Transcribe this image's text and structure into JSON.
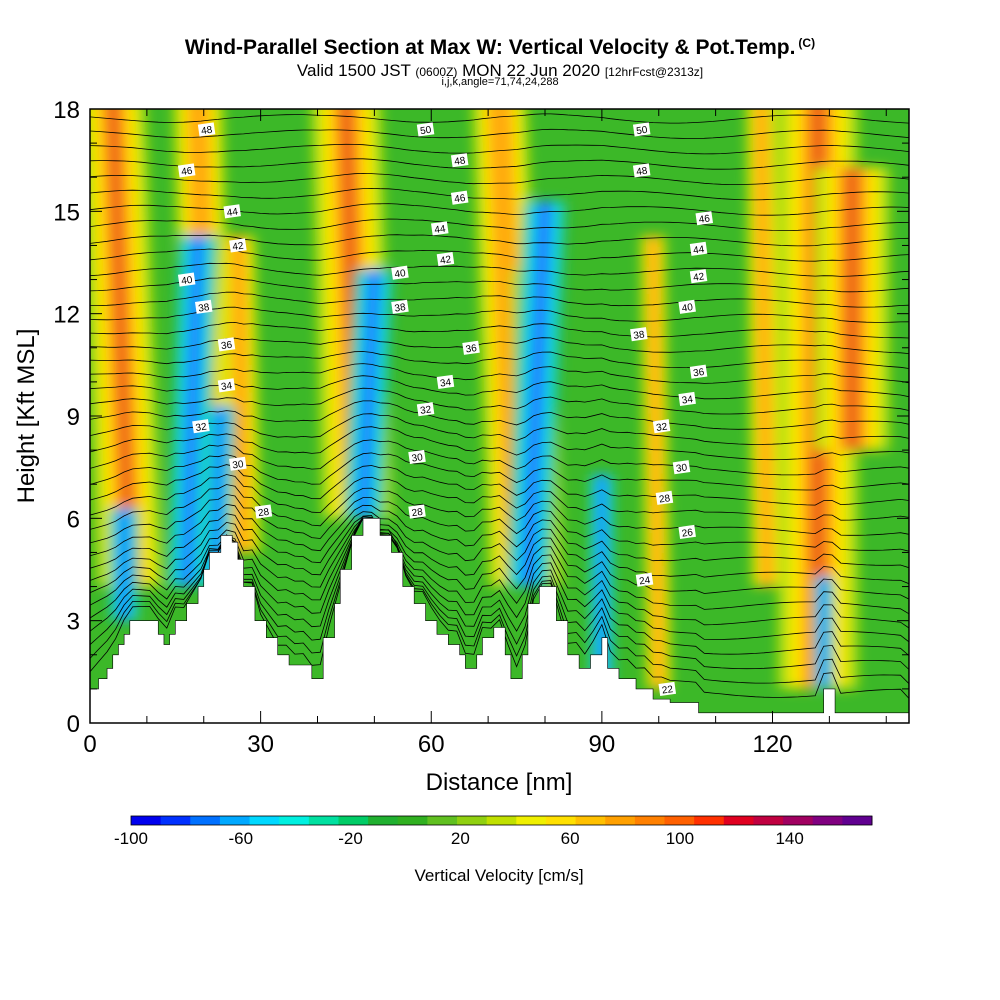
{
  "title": {
    "main": "Wind-Parallel Section at Max W: Vertical Velocity & Pot.Temp.",
    "copyright": "(C)",
    "valid_prefix": "Valid 1500 JST",
    "valid_z": "(0600Z)",
    "valid_date": "MON 22 Jun 2020",
    "forecast": "[12hrFcst@2313z]",
    "indices": "i,j,k,angle=71,74,24,288"
  },
  "chart_data": {
    "type": "heatmap",
    "xlabel": "Distance [nm]",
    "ylabel": "Height [Kft MSL]",
    "xlim": [
      0,
      144
    ],
    "ylim": [
      0,
      18
    ],
    "x_ticks": [
      0,
      30,
      60,
      90,
      120
    ],
    "y_ticks": [
      0,
      3,
      6,
      9,
      12,
      15,
      18
    ],
    "colorbar": {
      "label": "Vertical Velocity [cm/s]",
      "min": -100,
      "max": 170,
      "tick_labels": [
        -100,
        -60,
        -20,
        20,
        60,
        100,
        140
      ],
      "colors": [
        "#0000ee",
        "#0030ff",
        "#0070ff",
        "#00a8ff",
        "#00d8ff",
        "#00f0e0",
        "#00e0a0",
        "#00cc66",
        "#20b030",
        "#30b020",
        "#60c020",
        "#90d010",
        "#c0e000",
        "#f0f000",
        "#ffe000",
        "#ffc000",
        "#ffa000",
        "#ff8000",
        "#ff6000",
        "#ff3000",
        "#e00020",
        "#c00040",
        "#a00060",
        "#800080",
        "#600090"
      ]
    },
    "updrafts": [
      {
        "x": 7,
        "w": 130,
        "bottom": 4,
        "top": 18,
        "tilt": -3
      },
      {
        "x": 21,
        "w": 100,
        "bottom": 4,
        "top": 18,
        "tilt": -2
      },
      {
        "x": 27,
        "w": 70,
        "bottom": 5,
        "top": 14,
        "tilt": -1
      },
      {
        "x": 47,
        "w": 140,
        "bottom": 6,
        "top": 18,
        "tilt": -2
      },
      {
        "x": 50,
        "w": 50,
        "bottom": 6,
        "top": 12,
        "tilt": -1
      },
      {
        "x": 75,
        "w": 110,
        "bottom": 4,
        "top": 18,
        "tilt": -3
      },
      {
        "x": 79,
        "w": 90,
        "bottom": 4,
        "top": 13,
        "tilt": -1
      },
      {
        "x": 100,
        "w": 50,
        "bottom": 1,
        "top": 14,
        "tilt": -1
      },
      {
        "x": 119,
        "w": 60,
        "bottom": 4,
        "top": 18,
        "tilt": -1
      },
      {
        "x": 128,
        "w": 160,
        "bottom": 1,
        "top": 18,
        "tilt": 0
      },
      {
        "x": 134,
        "w": 150,
        "bottom": 8,
        "top": 16,
        "tilt": 0
      }
    ],
    "downdrafts": [
      {
        "x": 17,
        "w": 80,
        "bottom": 4,
        "top": 14,
        "tilt": 2
      },
      {
        "x": 22,
        "w": 60,
        "bottom": 4,
        "top": 9,
        "tilt": 1
      },
      {
        "x": 48,
        "w": 80,
        "bottom": 6,
        "top": 13,
        "tilt": 2
      },
      {
        "x": 77,
        "w": 90,
        "bottom": 4,
        "top": 15,
        "tilt": 3
      },
      {
        "x": 90,
        "w": 50,
        "bottom": 1,
        "top": 7,
        "tilt": 0
      },
      {
        "x": 6,
        "w": 60,
        "bottom": 3,
        "top": 6,
        "tilt": 0
      },
      {
        "x": 129,
        "w": 40,
        "bottom": 1,
        "top": 4,
        "tilt": 0
      }
    ],
    "terrain": [
      [
        0,
        1
      ],
      [
        1.5,
        1
      ],
      [
        1.5,
        1.3
      ],
      [
        3,
        1.3
      ],
      [
        3,
        1.6
      ],
      [
        4,
        1.6
      ],
      [
        4,
        2
      ],
      [
        5,
        2
      ],
      [
        5,
        2.3
      ],
      [
        6,
        2.3
      ],
      [
        6,
        2.6
      ],
      [
        7,
        2.6
      ],
      [
        7,
        3
      ],
      [
        12,
        3
      ],
      [
        12,
        2.6
      ],
      [
        13,
        2.6
      ],
      [
        13,
        2.3
      ],
      [
        14,
        2.3
      ],
      [
        14,
        2.6
      ],
      [
        15,
        2.6
      ],
      [
        15,
        3
      ],
      [
        17,
        3
      ],
      [
        17,
        3.5
      ],
      [
        19,
        3.5
      ],
      [
        19,
        4
      ],
      [
        20,
        4
      ],
      [
        20,
        4.5
      ],
      [
        21,
        4.5
      ],
      [
        21,
        5
      ],
      [
        23,
        5
      ],
      [
        23,
        5.5
      ],
      [
        25,
        5.5
      ],
      [
        25,
        5.3
      ],
      [
        26,
        5.3
      ],
      [
        26,
        4.8
      ],
      [
        27,
        4.8
      ],
      [
        27,
        4
      ],
      [
        29,
        4
      ],
      [
        29,
        3
      ],
      [
        31,
        3
      ],
      [
        31,
        2.5
      ],
      [
        33,
        2.5
      ],
      [
        33,
        2
      ],
      [
        35,
        2
      ],
      [
        35,
        1.7
      ],
      [
        39,
        1.7
      ],
      [
        39,
        1.3
      ],
      [
        41,
        1.3
      ],
      [
        41,
        2.5
      ],
      [
        43,
        2.5
      ],
      [
        43,
        3.5
      ],
      [
        44,
        3.5
      ],
      [
        44,
        4.5
      ],
      [
        46,
        4.5
      ],
      [
        46,
        5.5
      ],
      [
        48,
        5.5
      ],
      [
        48,
        6
      ],
      [
        51,
        6
      ],
      [
        51,
        5.5
      ],
      [
        53,
        5.5
      ],
      [
        53,
        5
      ],
      [
        55,
        5
      ],
      [
        55,
        4
      ],
      [
        57,
        4
      ],
      [
        57,
        3.5
      ],
      [
        59,
        3.5
      ],
      [
        59,
        3
      ],
      [
        61,
        3
      ],
      [
        61,
        2.6
      ],
      [
        63,
        2.6
      ],
      [
        63,
        2.3
      ],
      [
        65,
        2.3
      ],
      [
        65,
        2
      ],
      [
        66,
        2
      ],
      [
        66,
        1.6
      ],
      [
        68,
        1.6
      ],
      [
        68,
        2
      ],
      [
        69,
        2
      ],
      [
        69,
        2.5
      ],
      [
        71,
        2.5
      ],
      [
        71,
        2.8
      ],
      [
        73,
        2.8
      ],
      [
        73,
        2
      ],
      [
        74,
        2
      ],
      [
        74,
        1.3
      ],
      [
        76,
        1.3
      ],
      [
        76,
        2
      ],
      [
        77,
        2
      ],
      [
        77,
        3.5
      ],
      [
        79,
        3.5
      ],
      [
        79,
        4
      ],
      [
        82,
        4
      ],
      [
        82,
        3
      ],
      [
        84,
        3
      ],
      [
        84,
        2
      ],
      [
        86,
        2
      ],
      [
        86,
        1.6
      ],
      [
        88,
        1.6
      ],
      [
        88,
        2
      ],
      [
        90,
        2
      ],
      [
        90,
        2.5
      ],
      [
        91,
        2.5
      ],
      [
        91,
        1.6
      ],
      [
        93,
        1.6
      ],
      [
        93,
        1.3
      ],
      [
        96,
        1.3
      ],
      [
        96,
        1
      ],
      [
        99,
        1
      ],
      [
        99,
        0.7
      ],
      [
        102,
        0.7
      ],
      [
        102,
        0.6
      ],
      [
        107,
        0.6
      ],
      [
        107,
        0.3
      ],
      [
        129,
        0.3
      ],
      [
        129,
        1
      ],
      [
        131,
        1
      ],
      [
        131,
        0.3
      ],
      [
        144,
        0.3
      ],
      [
        144,
        0
      ]
    ],
    "isentrope_labels": [
      {
        "text": "48",
        "x": 20.5,
        "y": 17.4
      },
      {
        "text": "46",
        "x": 17,
        "y": 16.2
      },
      {
        "text": "44",
        "x": 25,
        "y": 15
      },
      {
        "text": "42",
        "x": 26,
        "y": 14
      },
      {
        "text": "40",
        "x": 17,
        "y": 13
      },
      {
        "text": "38",
        "x": 20,
        "y": 12.2
      },
      {
        "text": "36",
        "x": 24,
        "y": 11.1
      },
      {
        "text": "34",
        "x": 24,
        "y": 9.9
      },
      {
        "text": "32",
        "x": 19.5,
        "y": 8.7
      },
      {
        "text": "30",
        "x": 26,
        "y": 7.6
      },
      {
        "text": "28",
        "x": 30.5,
        "y": 6.2
      },
      {
        "text": "50",
        "x": 59,
        "y": 17.4
      },
      {
        "text": "48",
        "x": 65,
        "y": 16.5
      },
      {
        "text": "46",
        "x": 65,
        "y": 15.4
      },
      {
        "text": "44",
        "x": 61.5,
        "y": 14.5
      },
      {
        "text": "42",
        "x": 62.5,
        "y": 13.6
      },
      {
        "text": "40",
        "x": 54.5,
        "y": 13.2
      },
      {
        "text": "38",
        "x": 54.5,
        "y": 12.2
      },
      {
        "text": "36",
        "x": 67,
        "y": 11
      },
      {
        "text": "34",
        "x": 62.5,
        "y": 10
      },
      {
        "text": "32",
        "x": 59,
        "y": 9.2
      },
      {
        "text": "30",
        "x": 57.5,
        "y": 7.8
      },
      {
        "text": "28",
        "x": 57.5,
        "y": 6.2
      },
      {
        "text": "50",
        "x": 97,
        "y": 17.4
      },
      {
        "text": "48",
        "x": 97,
        "y": 16.2
      },
      {
        "text": "46",
        "x": 108,
        "y": 14.8
      },
      {
        "text": "44",
        "x": 107,
        "y": 13.9
      },
      {
        "text": "42",
        "x": 107,
        "y": 13.1
      },
      {
        "text": "40",
        "x": 105,
        "y": 12.2
      },
      {
        "text": "38",
        "x": 96.5,
        "y": 11.4
      },
      {
        "text": "36",
        "x": 107,
        "y": 10.3
      },
      {
        "text": "34",
        "x": 105,
        "y": 9.5
      },
      {
        "text": "32",
        "x": 100.5,
        "y": 8.7
      },
      {
        "text": "30",
        "x": 104,
        "y": 7.5
      },
      {
        "text": "28",
        "x": 101,
        "y": 6.6
      },
      {
        "text": "26",
        "x": 105,
        "y": 5.6
      },
      {
        "text": "24",
        "x": 97.5,
        "y": 4.2
      },
      {
        "text": "22",
        "x": 101.5,
        "y": 1
      }
    ]
  }
}
